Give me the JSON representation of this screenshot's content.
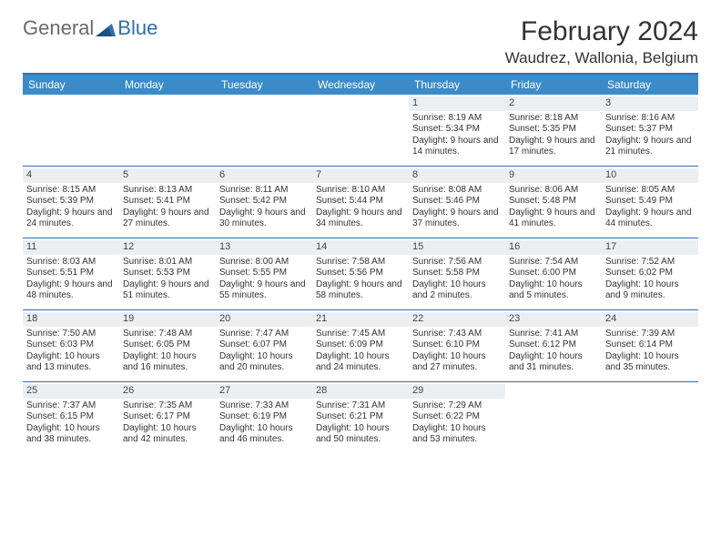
{
  "branding": {
    "logo_general": "General",
    "logo_blue": "Blue"
  },
  "header": {
    "month_title": "February 2024",
    "location": "Waudrez, Wallonia, Belgium"
  },
  "styling": {
    "header_bar_color": "#3b8bc9",
    "border_color": "#2d6fb0",
    "daynum_band_color": "#eceff1",
    "background_color": "#ffffff",
    "text_color": "#333333",
    "body_font_size": 10,
    "dayheader_font_size": 12,
    "title_font_size": 30,
    "location_font_size": 17
  },
  "day_headers": [
    "Sunday",
    "Monday",
    "Tuesday",
    "Wednesday",
    "Thursday",
    "Friday",
    "Saturday"
  ],
  "weeks": [
    [
      {
        "day": "",
        "sunrise": "",
        "sunset": "",
        "daylight": ""
      },
      {
        "day": "",
        "sunrise": "",
        "sunset": "",
        "daylight": ""
      },
      {
        "day": "",
        "sunrise": "",
        "sunset": "",
        "daylight": ""
      },
      {
        "day": "",
        "sunrise": "",
        "sunset": "",
        "daylight": ""
      },
      {
        "day": "1",
        "sunrise": "Sunrise: 8:19 AM",
        "sunset": "Sunset: 5:34 PM",
        "daylight": "Daylight: 9 hours and 14 minutes."
      },
      {
        "day": "2",
        "sunrise": "Sunrise: 8:18 AM",
        "sunset": "Sunset: 5:35 PM",
        "daylight": "Daylight: 9 hours and 17 minutes."
      },
      {
        "day": "3",
        "sunrise": "Sunrise: 8:16 AM",
        "sunset": "Sunset: 5:37 PM",
        "daylight": "Daylight: 9 hours and 21 minutes."
      }
    ],
    [
      {
        "day": "4",
        "sunrise": "Sunrise: 8:15 AM",
        "sunset": "Sunset: 5:39 PM",
        "daylight": "Daylight: 9 hours and 24 minutes."
      },
      {
        "day": "5",
        "sunrise": "Sunrise: 8:13 AM",
        "sunset": "Sunset: 5:41 PM",
        "daylight": "Daylight: 9 hours and 27 minutes."
      },
      {
        "day": "6",
        "sunrise": "Sunrise: 8:11 AM",
        "sunset": "Sunset: 5:42 PM",
        "daylight": "Daylight: 9 hours and 30 minutes."
      },
      {
        "day": "7",
        "sunrise": "Sunrise: 8:10 AM",
        "sunset": "Sunset: 5:44 PM",
        "daylight": "Daylight: 9 hours and 34 minutes."
      },
      {
        "day": "8",
        "sunrise": "Sunrise: 8:08 AM",
        "sunset": "Sunset: 5:46 PM",
        "daylight": "Daylight: 9 hours and 37 minutes."
      },
      {
        "day": "9",
        "sunrise": "Sunrise: 8:06 AM",
        "sunset": "Sunset: 5:48 PM",
        "daylight": "Daylight: 9 hours and 41 minutes."
      },
      {
        "day": "10",
        "sunrise": "Sunrise: 8:05 AM",
        "sunset": "Sunset: 5:49 PM",
        "daylight": "Daylight: 9 hours and 44 minutes."
      }
    ],
    [
      {
        "day": "11",
        "sunrise": "Sunrise: 8:03 AM",
        "sunset": "Sunset: 5:51 PM",
        "daylight": "Daylight: 9 hours and 48 minutes."
      },
      {
        "day": "12",
        "sunrise": "Sunrise: 8:01 AM",
        "sunset": "Sunset: 5:53 PM",
        "daylight": "Daylight: 9 hours and 51 minutes."
      },
      {
        "day": "13",
        "sunrise": "Sunrise: 8:00 AM",
        "sunset": "Sunset: 5:55 PM",
        "daylight": "Daylight: 9 hours and 55 minutes."
      },
      {
        "day": "14",
        "sunrise": "Sunrise: 7:58 AM",
        "sunset": "Sunset: 5:56 PM",
        "daylight": "Daylight: 9 hours and 58 minutes."
      },
      {
        "day": "15",
        "sunrise": "Sunrise: 7:56 AM",
        "sunset": "Sunset: 5:58 PM",
        "daylight": "Daylight: 10 hours and 2 minutes."
      },
      {
        "day": "16",
        "sunrise": "Sunrise: 7:54 AM",
        "sunset": "Sunset: 6:00 PM",
        "daylight": "Daylight: 10 hours and 5 minutes."
      },
      {
        "day": "17",
        "sunrise": "Sunrise: 7:52 AM",
        "sunset": "Sunset: 6:02 PM",
        "daylight": "Daylight: 10 hours and 9 minutes."
      }
    ],
    [
      {
        "day": "18",
        "sunrise": "Sunrise: 7:50 AM",
        "sunset": "Sunset: 6:03 PM",
        "daylight": "Daylight: 10 hours and 13 minutes."
      },
      {
        "day": "19",
        "sunrise": "Sunrise: 7:48 AM",
        "sunset": "Sunset: 6:05 PM",
        "daylight": "Daylight: 10 hours and 16 minutes."
      },
      {
        "day": "20",
        "sunrise": "Sunrise: 7:47 AM",
        "sunset": "Sunset: 6:07 PM",
        "daylight": "Daylight: 10 hours and 20 minutes."
      },
      {
        "day": "21",
        "sunrise": "Sunrise: 7:45 AM",
        "sunset": "Sunset: 6:09 PM",
        "daylight": "Daylight: 10 hours and 24 minutes."
      },
      {
        "day": "22",
        "sunrise": "Sunrise: 7:43 AM",
        "sunset": "Sunset: 6:10 PM",
        "daylight": "Daylight: 10 hours and 27 minutes."
      },
      {
        "day": "23",
        "sunrise": "Sunrise: 7:41 AM",
        "sunset": "Sunset: 6:12 PM",
        "daylight": "Daylight: 10 hours and 31 minutes."
      },
      {
        "day": "24",
        "sunrise": "Sunrise: 7:39 AM",
        "sunset": "Sunset: 6:14 PM",
        "daylight": "Daylight: 10 hours and 35 minutes."
      }
    ],
    [
      {
        "day": "25",
        "sunrise": "Sunrise: 7:37 AM",
        "sunset": "Sunset: 6:15 PM",
        "daylight": "Daylight: 10 hours and 38 minutes."
      },
      {
        "day": "26",
        "sunrise": "Sunrise: 7:35 AM",
        "sunset": "Sunset: 6:17 PM",
        "daylight": "Daylight: 10 hours and 42 minutes."
      },
      {
        "day": "27",
        "sunrise": "Sunrise: 7:33 AM",
        "sunset": "Sunset: 6:19 PM",
        "daylight": "Daylight: 10 hours and 46 minutes."
      },
      {
        "day": "28",
        "sunrise": "Sunrise: 7:31 AM",
        "sunset": "Sunset: 6:21 PM",
        "daylight": "Daylight: 10 hours and 50 minutes."
      },
      {
        "day": "29",
        "sunrise": "Sunrise: 7:29 AM",
        "sunset": "Sunset: 6:22 PM",
        "daylight": "Daylight: 10 hours and 53 minutes."
      },
      {
        "day": "",
        "sunrise": "",
        "sunset": "",
        "daylight": ""
      },
      {
        "day": "",
        "sunrise": "",
        "sunset": "",
        "daylight": ""
      }
    ]
  ]
}
